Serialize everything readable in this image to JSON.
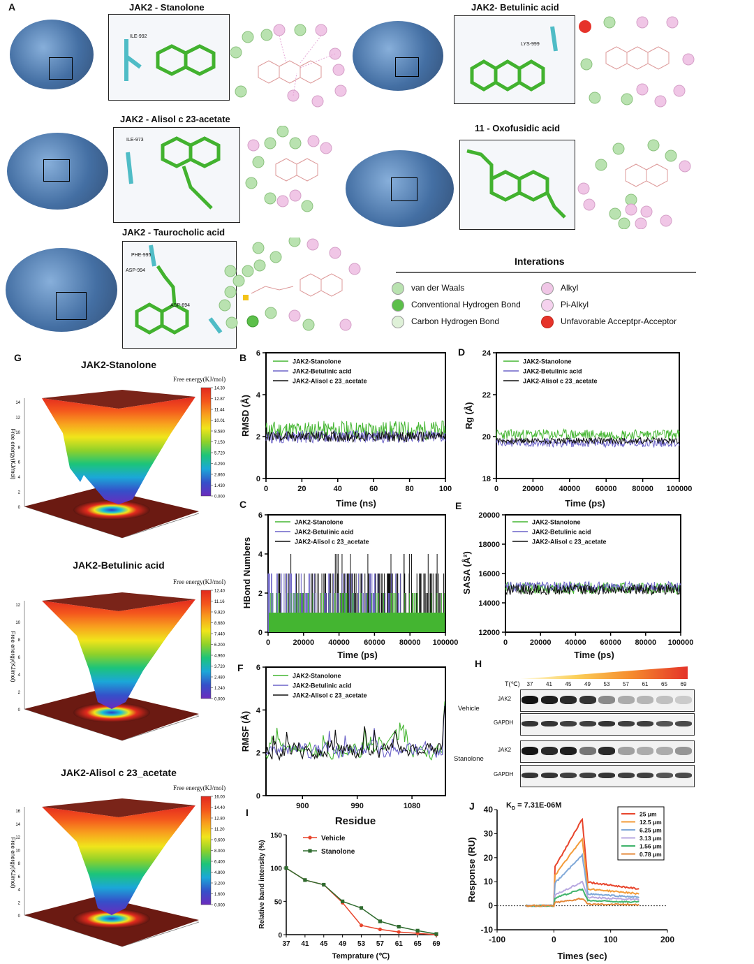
{
  "panel_labels": {
    "A": "A",
    "B": "B",
    "C": "C",
    "D": "D",
    "E": "E",
    "F": "F",
    "G": "G",
    "H": "H",
    "I": "I",
    "J": "J"
  },
  "docking": {
    "titles": [
      "JAK2 - Stanolone",
      "JAK2- Betulinic acid",
      "JAK2 - Alisol c 23-acetate",
      "11 - Oxofusidic acid",
      "JAK2 - Taurocholic acid"
    ],
    "residue_labels": {
      "stanolone": "ILE-992",
      "betulinic": "LYS-999",
      "alisol": "ILE-973",
      "taurocholic_1": "PHE-995",
      "taurocholic_2": "ASP-994",
      "taurocholic_3": "ASP-894"
    }
  },
  "interactions_legend": {
    "title": "Interations",
    "items": [
      {
        "label": "van der Waals",
        "color": "#b9e2b0"
      },
      {
        "label": "Conventional Hydrogen Bond",
        "color": "#5cbf4a"
      },
      {
        "label": "Carbon Hydrogen Bond",
        "color": "#dff1d8"
      },
      {
        "label": "Alkyl",
        "color": "#f0c6e6"
      },
      {
        "label": "Pi-Alkyl",
        "color": "#f5d2ee"
      },
      {
        "label": "Unfavorable Acceptpr-Acceptor",
        "color": "#e6332a"
      }
    ]
  },
  "fel": {
    "titles": [
      "JAK2-Stanolone",
      "JAK2-Betulinic acid",
      "JAK2-Alisol c 23_acetate"
    ],
    "colorbar_label": "Free energy(KJ/mol)",
    "zlabel": "Free energy(KJ/mol)",
    "colorbar_ticks": [
      [
        "14.30",
        "12.87",
        "11.44",
        "10.01",
        "8.580",
        "7.150",
        "5.720",
        "4.290",
        "2.860",
        "1.430",
        "0.000"
      ],
      [
        "12.40",
        "11.16",
        "9.920",
        "8.680",
        "7.440",
        "6.200",
        "4.960",
        "3.720",
        "2.480",
        "1.240",
        "0.000"
      ],
      [
        "16.00",
        "14.40",
        "12.80",
        "11.20",
        "9.600",
        "8.000",
        "6.400",
        "4.800",
        "3.200",
        "1.600",
        "0.000"
      ]
    ],
    "z_ticks": [
      [
        "0",
        "2",
        "4",
        "6",
        "8",
        "10",
        "12",
        "14"
      ],
      [
        "0",
        "2",
        "4",
        "6",
        "8",
        "10",
        "12"
      ],
      [
        "0",
        "2",
        "4",
        "6",
        "8",
        "10",
        "12",
        "14",
        "16"
      ]
    ]
  },
  "colors": {
    "stanolone": "#44b531",
    "betulinic": "#6c63c8",
    "alisol": "#111111",
    "vehicle": "#e8452c",
    "stanolone_tsa": "#2f6b2f"
  },
  "md_legend": [
    "JAK2-Stanolone",
    "JAK2-Betulinic acid",
    "JAK2-Alisol c 23_acetate"
  ],
  "chart_data": [
    {
      "id": "B",
      "type": "line",
      "ylabel": "RMSD (Å)",
      "xlabel": "Time (ns)",
      "xlim": [
        0,
        100
      ],
      "ylim": [
        0,
        6
      ],
      "xticks": [
        "0",
        "20",
        "40",
        "60",
        "80",
        "100"
      ],
      "yticks": [
        "0",
        "2",
        "4",
        "6"
      ],
      "series": [
        {
          "name": "JAK2-Stanolone",
          "mean": 2.3,
          "noise": 0.45
        },
        {
          "name": "JAK2-Betulinic acid",
          "mean": 2.0,
          "noise": 0.3
        },
        {
          "name": "JAK2-Alisol c 23_acetate",
          "mean": 2.0,
          "noise": 0.25
        }
      ]
    },
    {
      "id": "D",
      "type": "line",
      "ylabel": "Rg (Å)",
      "xlabel": "Time (ps)",
      "xlim": [
        0,
        100000
      ],
      "ylim": [
        18,
        24
      ],
      "xticks": [
        "0",
        "20000",
        "40000",
        "60000",
        "80000",
        "100000"
      ],
      "yticks": [
        "18",
        "20",
        "22",
        "24"
      ],
      "series": [
        {
          "name": "JAK2-Stanolone",
          "mean": 20.1,
          "noise": 0.25
        },
        {
          "name": "JAK2-Betulinic acid",
          "mean": 19.7,
          "noise": 0.2
        },
        {
          "name": "JAK2-Alisol c 23_acetate",
          "mean": 19.8,
          "noise": 0.15
        }
      ]
    },
    {
      "id": "C",
      "type": "line",
      "ylabel": "HBond Numbers",
      "xlabel": "Time (ps)",
      "xlim": [
        0,
        100000
      ],
      "ylim": [
        0,
        6
      ],
      "xticks": [
        "0",
        "20000",
        "40000",
        "60000",
        "80000",
        "100000"
      ],
      "yticks": [
        "0",
        "2",
        "4",
        "6"
      ],
      "series": [
        {
          "name": "JAK2-Stanolone",
          "values_range": [
            0,
            2
          ]
        },
        {
          "name": "JAK2-Betulinic acid",
          "values_range": [
            0,
            2
          ]
        },
        {
          "name": "JAK2-Alisol c 23_acetate",
          "values_range": [
            0,
            4
          ]
        }
      ]
    },
    {
      "id": "E",
      "type": "line",
      "ylabel": "SASA (Å²)",
      "xlabel": "Time (ps)",
      "xlim": [
        0,
        100000
      ],
      "ylim": [
        12000,
        20000
      ],
      "xticks": [
        "0",
        "20000",
        "40000",
        "60000",
        "80000",
        "100000"
      ],
      "yticks": [
        "12000",
        "14000",
        "16000",
        "18000",
        "20000"
      ],
      "series": [
        {
          "name": "JAK2-Stanolone",
          "mean": 15000,
          "noise": 400
        },
        {
          "name": "JAK2-Betulinic acid",
          "mean": 15100,
          "noise": 350
        },
        {
          "name": "JAK2-Alisol c 23_acetate",
          "mean": 14900,
          "noise": 350
        }
      ]
    },
    {
      "id": "F",
      "type": "line",
      "ylabel": "RMSF (Å)",
      "xlabel": "Residue",
      "xlim": [
        840,
        1135
      ],
      "ylim": [
        0,
        6
      ],
      "xticks": [
        "900",
        "990",
        "1080"
      ],
      "yticks": [
        "0",
        "2",
        "4",
        "6"
      ],
      "series": [
        {
          "name": "JAK2-Stanolone"
        },
        {
          "name": "JAK2-Betulinic acid"
        },
        {
          "name": "JAK2-Alisol c 23_acetate"
        }
      ]
    },
    {
      "id": "I",
      "type": "line",
      "ylabel": "Relative band intensity (%)",
      "xlabel": "Temprature (℃)",
      "ylim": [
        0,
        150
      ],
      "categories": [
        "37",
        "41",
        "45",
        "49",
        "53",
        "57",
        "61",
        "65",
        "69"
      ],
      "yticks": [
        "0",
        "50",
        "100",
        "150"
      ],
      "series": [
        {
          "name": "Vehicle",
          "values": [
            100,
            82,
            75,
            48,
            14,
            8,
            4,
            2,
            0
          ]
        },
        {
          "name": "Stanolone",
          "values": [
            100,
            82,
            75,
            50,
            40,
            20,
            12,
            6,
            1
          ]
        }
      ]
    },
    {
      "id": "J",
      "type": "line",
      "ylabel": "Response (RU)",
      "xlabel": "Times (sec)",
      "xlim": [
        -100,
        200
      ],
      "ylim": [
        -10,
        40
      ],
      "xticks": [
        "-100",
        "0",
        "100",
        "200"
      ],
      "yticks": [
        "-10",
        "0",
        "10",
        "20",
        "30",
        "40"
      ],
      "annotation": "7.31E-06M",
      "kd_label": "K",
      "kd_sub": "D",
      "series": [
        {
          "name": "25 μm",
          "peak": 36,
          "plateau": 7,
          "color": "#e8452c"
        },
        {
          "name": "12.5 μm",
          "peak": 28,
          "plateau": 5,
          "color": "#f39c3a"
        },
        {
          "name": "6.25 μm",
          "peak": 21,
          "plateau": 3.5,
          "color": "#7fa8d8"
        },
        {
          "name": "3.13 μm",
          "peak": 10,
          "plateau": 2.5,
          "color": "#b7a7e0"
        },
        {
          "name": "1.56 μm",
          "peak": 7,
          "plateau": 1.5,
          "color": "#3fb36b"
        },
        {
          "name": "0.78 μm",
          "peak": 3,
          "plateau": 0.5,
          "color": "#e4883a"
        }
      ]
    }
  ],
  "western": {
    "temp_label": "T(℃)",
    "temps": [
      "37",
      "41",
      "45",
      "49",
      "53",
      "57",
      "61",
      "65",
      "69"
    ],
    "groups": [
      "Vehicle",
      "Stanolone"
    ],
    "bands": [
      "JAK2",
      "GAPDH"
    ],
    "vehicle_jak2": [
      1,
      0.95,
      0.9,
      0.85,
      0.45,
      0.3,
      0.25,
      0.2,
      0.15
    ],
    "stanolone_jak2": [
      1,
      0.9,
      0.95,
      0.55,
      0.9,
      0.35,
      0.3,
      0.3,
      0.4
    ],
    "gapdh": [
      0.85,
      0.85,
      0.8,
      0.8,
      0.85,
      0.8,
      0.8,
      0.7,
      0.75
    ]
  }
}
